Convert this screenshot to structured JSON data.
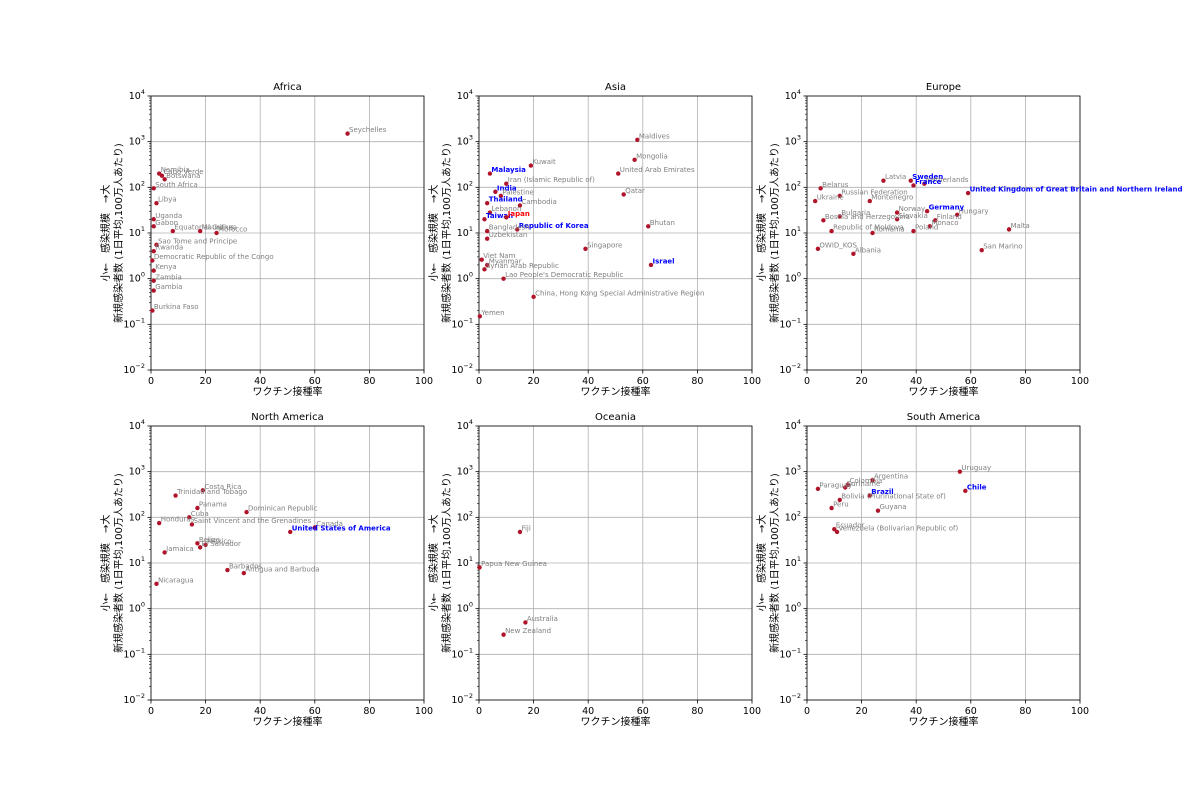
{
  "figure": {
    "xlabel": "ワクチン接種率",
    "ylabel_line1": "小←　感染規模　→大",
    "ylabel_line2": "新規感染者数 (1日平均,100万人あたり)",
    "x_ticks": [
      "0",
      "20",
      "40",
      "60",
      "80",
      "100"
    ],
    "y_ticks": [
      {
        "base": "10",
        "exp": "−2"
      },
      {
        "base": "10",
        "exp": "−1"
      },
      {
        "base": "10",
        "exp": "0"
      },
      {
        "base": "10",
        "exp": "1"
      },
      {
        "base": "10",
        "exp": "2"
      },
      {
        "base": "10",
        "exp": "3"
      },
      {
        "base": "10",
        "exp": "4"
      }
    ]
  },
  "colors": {
    "point": "#b0142a",
    "label_normal": "#7f7f7f",
    "label_highlight": "#0000ff",
    "label_japan": "#ff0000",
    "grid": "#b0b0b0"
  },
  "chart_data": [
    {
      "type": "scatter",
      "title": "Africa",
      "xlim": [
        0,
        100
      ],
      "ylim": [
        0.01,
        10000
      ],
      "yscale": "log",
      "grid": true,
      "points": [
        {
          "label": "Seychelles",
          "x": 72,
          "y": 1500
        },
        {
          "label": "Namibia",
          "x": 3,
          "y": 200
        },
        {
          "label": "Cabo Verde",
          "x": 4,
          "y": 180
        },
        {
          "label": "Botswana",
          "x": 5,
          "y": 150
        },
        {
          "label": "South Africa",
          "x": 1,
          "y": 95
        },
        {
          "label": "Libya",
          "x": 2,
          "y": 45
        },
        {
          "label": "Uganda",
          "x": 1,
          "y": 20
        },
        {
          "label": "Gabon",
          "x": 1,
          "y": 14
        },
        {
          "label": "Equatorial Guinea",
          "x": 8,
          "y": 11
        },
        {
          "label": "Mauritius",
          "x": 18,
          "y": 11
        },
        {
          "label": "Morocco",
          "x": 24,
          "y": 10
        },
        {
          "label": "Sao Tome and Principe",
          "x": 2,
          "y": 5.5
        },
        {
          "label": "Democratic Republic of the Congo",
          "x": 0.5,
          "y": 2.5
        },
        {
          "label": "Rwanda",
          "x": 1,
          "y": 4
        },
        {
          "label": "Kenya",
          "x": 1,
          "y": 1.5
        },
        {
          "label": "Zambia",
          "x": 1,
          "y": 0.9
        },
        {
          "label": "Gambia",
          "x": 1,
          "y": 0.55
        },
        {
          "label": "Burkina Faso",
          "x": 0.5,
          "y": 0.2
        }
      ]
    },
    {
      "type": "scatter",
      "title": "Asia",
      "xlim": [
        0,
        100
      ],
      "ylim": [
        0.01,
        10000
      ],
      "yscale": "log",
      "grid": true,
      "points": [
        {
          "label": "Maldives",
          "x": 58,
          "y": 1100
        },
        {
          "label": "Mongolia",
          "x": 57,
          "y": 400
        },
        {
          "label": "Kuwait",
          "x": 19,
          "y": 300
        },
        {
          "label": "Malaysia",
          "x": 4,
          "y": 200,
          "highlight": true
        },
        {
          "label": "United Arab Emirates",
          "x": 51,
          "y": 200
        },
        {
          "label": "Iran (Islamic Republic of)",
          "x": 10,
          "y": 120
        },
        {
          "label": "India",
          "x": 6,
          "y": 80,
          "highlight": true
        },
        {
          "label": "Qatar",
          "x": 53,
          "y": 70
        },
        {
          "label": "Palestine",
          "x": 8,
          "y": 65
        },
        {
          "label": "Thailand",
          "x": 3,
          "y": 45,
          "highlight": true
        },
        {
          "label": "Cambodia",
          "x": 15,
          "y": 40
        },
        {
          "label": "Lebanon",
          "x": 4,
          "y": 28
        },
        {
          "label": "Taiwan",
          "x": 2,
          "y": 20,
          "highlight": true
        },
        {
          "label": "Japan",
          "x": 10,
          "y": 22,
          "japan": true
        },
        {
          "label": "Bhutan",
          "x": 62,
          "y": 14
        },
        {
          "label": "Republic of Korea",
          "x": 14,
          "y": 12,
          "highlight": true
        },
        {
          "label": "Bangladesh",
          "x": 3,
          "y": 11
        },
        {
          "label": "Uzbekistan",
          "x": 3,
          "y": 7.5
        },
        {
          "label": "Singapore",
          "x": 39,
          "y": 4.5
        },
        {
          "label": "Viet Nam",
          "x": 1,
          "y": 2.6
        },
        {
          "label": "Myanmar",
          "x": 3,
          "y": 2
        },
        {
          "label": "Syrian Arab Republic",
          "x": 2,
          "y": 1.6
        },
        {
          "label": "Lao People's Democratic Republic",
          "x": 9,
          "y": 1
        },
        {
          "label": "Israel",
          "x": 63,
          "y": 2,
          "highlight": true
        },
        {
          "label": "China, Hong Kong Special Administrative Region",
          "x": 20,
          "y": 0.4
        },
        {
          "label": "Yemen",
          "x": 0.3,
          "y": 0.15
        }
      ]
    },
    {
      "type": "scatter",
      "title": "Europe",
      "xlim": [
        0,
        100
      ],
      "ylim": [
        0.01,
        10000
      ],
      "yscale": "log",
      "grid": true,
      "points": [
        {
          "label": "Latvia",
          "x": 28,
          "y": 140
        },
        {
          "label": "Sweden",
          "x": 38,
          "y": 140,
          "highlight": true
        },
        {
          "label": "Netherlands",
          "x": 43,
          "y": 120
        },
        {
          "label": "France",
          "x": 39,
          "y": 110,
          "highlight": true
        },
        {
          "label": "Belarus",
          "x": 5,
          "y": 95
        },
        {
          "label": "United Kingdom of Great Britain and Northern Ireland",
          "x": 59,
          "y": 75,
          "highlight": true
        },
        {
          "label": "Russian Federation",
          "x": 12,
          "y": 65
        },
        {
          "label": "Ukraine",
          "x": 3,
          "y": 50
        },
        {
          "label": "Montenegro",
          "x": 23,
          "y": 50
        },
        {
          "label": "Germany",
          "x": 44,
          "y": 30,
          "highlight": true
        },
        {
          "label": "Norway",
          "x": 33,
          "y": 28
        },
        {
          "label": "Bulgaria",
          "x": 12,
          "y": 23
        },
        {
          "label": "Hungary",
          "x": 55,
          "y": 25
        },
        {
          "label": "Slovakia",
          "x": 33,
          "y": 20
        },
        {
          "label": "Finland",
          "x": 47,
          "y": 19
        },
        {
          "label": "Bosnia and Herzegovina",
          "x": 6,
          "y": 19
        },
        {
          "label": "Monaco",
          "x": 45,
          "y": 14
        },
        {
          "label": "Poland",
          "x": 39,
          "y": 11
        },
        {
          "label": "Malta",
          "x": 74,
          "y": 12
        },
        {
          "label": "Republic of Moldova",
          "x": 9,
          "y": 11
        },
        {
          "label": "Romania",
          "x": 24,
          "y": 10
        },
        {
          "label": "San Marino",
          "x": 64,
          "y": 4.2
        },
        {
          "label": "OWID_KOS",
          "x": 4,
          "y": 4.5
        },
        {
          "label": "Albania",
          "x": 17,
          "y": 3.5
        }
      ]
    },
    {
      "type": "scatter",
      "title": "North America",
      "xlim": [
        0,
        100
      ],
      "ylim": [
        0.01,
        10000
      ],
      "yscale": "log",
      "grid": true,
      "points": [
        {
          "label": "Costa Rica",
          "x": 19,
          "y": 390
        },
        {
          "label": "Trinidad and Tobago",
          "x": 9,
          "y": 300
        },
        {
          "label": "Panama",
          "x": 17,
          "y": 160
        },
        {
          "label": "Dominican Republic",
          "x": 35,
          "y": 130
        },
        {
          "label": "Cuba",
          "x": 14,
          "y": 100
        },
        {
          "label": "Honduras",
          "x": 3,
          "y": 75
        },
        {
          "label": "Saint Vincent and the Grenadines",
          "x": 15,
          "y": 70
        },
        {
          "label": "Canada",
          "x": 60,
          "y": 60
        },
        {
          "label": "United States of America",
          "x": 51,
          "y": 48,
          "highlight": true
        },
        {
          "label": "Belize",
          "x": 17,
          "y": 27
        },
        {
          "label": "Mexico",
          "x": 20,
          "y": 25
        },
        {
          "label": "El Salvador",
          "x": 18,
          "y": 22
        },
        {
          "label": "Jamaica",
          "x": 5,
          "y": 17
        },
        {
          "label": "Barbados",
          "x": 28,
          "y": 7
        },
        {
          "label": "Antigua and Barbuda",
          "x": 34,
          "y": 6
        },
        {
          "label": "Nicaragua",
          "x": 2,
          "y": 3.5
        }
      ]
    },
    {
      "type": "scatter",
      "title": "Oceania",
      "xlim": [
        0,
        100
      ],
      "ylim": [
        0.01,
        10000
      ],
      "yscale": "log",
      "grid": true,
      "points": [
        {
          "label": "Fiji",
          "x": 15,
          "y": 48
        },
        {
          "label": "Papua New Guinea",
          "x": 0.2,
          "y": 8
        },
        {
          "label": "Australia",
          "x": 17,
          "y": 0.5
        },
        {
          "label": "New Zealand",
          "x": 9,
          "y": 0.27
        }
      ]
    },
    {
      "type": "scatter",
      "title": "South America",
      "xlim": [
        0,
        100
      ],
      "ylim": [
        0.01,
        10000
      ],
      "yscale": "log",
      "grid": true,
      "points": [
        {
          "label": "Uruguay",
          "x": 56,
          "y": 1000
        },
        {
          "label": "Argentina",
          "x": 24,
          "y": 650
        },
        {
          "label": "Colombia",
          "x": 15,
          "y": 520
        },
        {
          "label": "Suriname",
          "x": 14,
          "y": 450
        },
        {
          "label": "Paraguay",
          "x": 4,
          "y": 420
        },
        {
          "label": "Chile",
          "x": 58,
          "y": 380,
          "highlight": true
        },
        {
          "label": "Brazil",
          "x": 23,
          "y": 300,
          "highlight": true
        },
        {
          "label": "Bolivia (Plurinational State of)",
          "x": 12,
          "y": 240
        },
        {
          "label": "Peru",
          "x": 9,
          "y": 160
        },
        {
          "label": "Guyana",
          "x": 26,
          "y": 140
        },
        {
          "label": "Ecuador",
          "x": 10,
          "y": 55
        },
        {
          "label": "Venezuela (Bolivarian Republic of)",
          "x": 11,
          "y": 48
        }
      ]
    }
  ]
}
